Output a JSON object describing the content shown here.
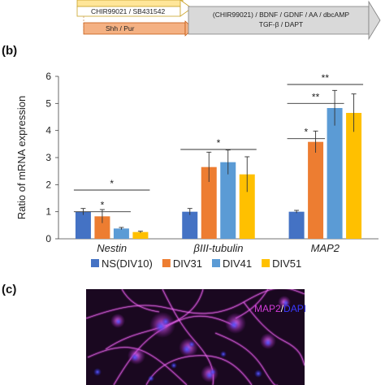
{
  "panel_a": {
    "label_chir_sb": "CHIR99021 / SB431542",
    "label_shh_pur": "Shh / Pur",
    "label_line1": "(CHIR99021) / BDNF / GDNF / AA / dbcAMP",
    "label_line2": "TGF-β / DAPT"
  },
  "panel_b_letter": "(b)",
  "panel_c_letter": "(c)",
  "micrograph": {
    "label_map2": "MAP2",
    "label_sep": "/",
    "label_dapi": "DAPI",
    "colors": {
      "map2": "#d23cd8",
      "dapi": "#3a3aff",
      "background": "#1a0820"
    }
  },
  "chart_data": {
    "type": "bar",
    "categories": [
      "Nestin",
      "βIII-tubulin",
      "MAP2"
    ],
    "ylabel": "Ratio of mRNA expression",
    "ylim": [
      0,
      6
    ],
    "yticks": [
      0,
      1,
      2,
      3,
      4,
      5,
      6
    ],
    "grid": false,
    "legend_position": "bottom",
    "series": [
      {
        "name": "NS(DIV10)",
        "color": "#4472c4",
        "values": [
          1.0,
          1.0,
          1.0
        ],
        "errors": [
          0.12,
          0.12,
          0.05
        ]
      },
      {
        "name": "DIV31",
        "color": "#ed7d31",
        "values": [
          0.83,
          2.65,
          3.58
        ],
        "errors": [
          0.25,
          0.55,
          0.4
        ]
      },
      {
        "name": "DIV41",
        "color": "#5b9bd5",
        "values": [
          0.38,
          2.83,
          4.83
        ],
        "errors": [
          0.04,
          0.45,
          0.65
        ]
      },
      {
        "name": "DIV51",
        "color": "#ffc000",
        "values": [
          0.25,
          2.38,
          4.65
        ],
        "errors": [
          0.03,
          0.65,
          0.7
        ]
      }
    ],
    "significance": [
      {
        "category": 0,
        "from_series": 0,
        "to_series": 2,
        "y": 1.6,
        "label": "*"
      },
      {
        "category": 0,
        "from_series": 0,
        "to_series": 3,
        "y": 2.4,
        "label": "*"
      },
      {
        "category": 1,
        "from_series": 0,
        "to_series": 3,
        "y": 3.9,
        "label": "*"
      },
      {
        "category": 2,
        "from_series": 0,
        "to_series": 1,
        "y": 4.3,
        "label": "*"
      },
      {
        "category": 2,
        "from_series": 0,
        "to_series": 2,
        "y": 5.6,
        "label": "**"
      },
      {
        "category": 2,
        "from_series": 0,
        "to_series": 3,
        "y": 6.3,
        "label": "**"
      }
    ]
  }
}
